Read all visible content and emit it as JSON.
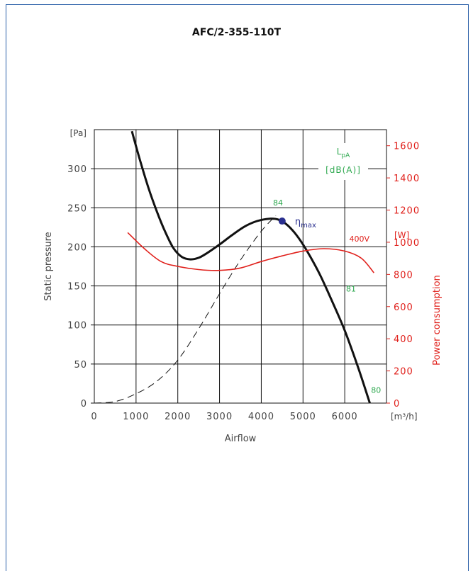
{
  "title": "AFC/2-355-110T",
  "chart_data": {
    "type": "line",
    "title": "AFC/2-355-110T",
    "xlabel": "Airflow",
    "ylabel_left": "Static pressure",
    "ylabel_right": "Power consumption",
    "x_unit": "[m³/h]",
    "y_left_unit": "[Pa]",
    "y_right_unit": "[W]",
    "xlim": [
      0,
      7000
    ],
    "ylim_left": [
      0,
      350
    ],
    "ylim_right": [
      0,
      1700
    ],
    "x_ticks": [
      0,
      1000,
      2000,
      3000,
      4000,
      5000,
      6000
    ],
    "y_left_ticks": [
      0,
      50,
      100,
      150,
      200,
      250,
      300
    ],
    "y_right_ticks": [
      0,
      200,
      400,
      600,
      800,
      1000,
      1200,
      1400,
      1600
    ],
    "grid": true,
    "legend_box": {
      "line1": "L",
      "line1_sub": "pA",
      "line2": "[dB(A)]"
    },
    "series": [
      {
        "name": "",
        "axis": "left",
        "color": "#111111",
        "style": "solid",
        "x": [
          900,
          1100,
          1300,
          1500,
          1700,
          1900,
          2100,
          2300,
          2500,
          2700,
          3000,
          3300,
          3600,
          3900,
          4200,
          4400,
          4600,
          4800,
          5000,
          5200,
          5400,
          5600,
          5800,
          6000,
          6200,
          6400,
          6600
        ],
        "y": [
          348,
          310,
          275,
          245,
          219,
          198,
          187,
          184,
          186,
          192,
          203,
          215,
          226,
          233,
          236,
          235,
          229,
          218,
          203,
          185,
          165,
          142,
          118,
          93,
          64,
          33,
          0
        ]
      },
      {
        "name": "",
        "axis": "left",
        "color": "#111111",
        "style": "dashed",
        "x": [
          0,
          500,
          1000,
          1500,
          2000,
          2500,
          3000,
          3500,
          4000,
          4350
        ],
        "y": [
          0,
          2,
          12,
          28,
          55,
          95,
          140,
          183,
          220,
          240
        ]
      },
      {
        "name": "400V",
        "axis": "right",
        "color": "#e0201b",
        "style": "solid",
        "x": [
          800,
          1200,
          1600,
          2000,
          2500,
          3000,
          3500,
          4000,
          4500,
          5000,
          5500,
          6000,
          6400,
          6700
        ],
        "y": [
          1060,
          960,
          880,
          850,
          830,
          825,
          840,
          880,
          915,
          945,
          960,
          945,
          900,
          810
        ]
      }
    ],
    "points": [
      {
        "label": "η",
        "label_sub": "max",
        "x": 4500,
        "y": 233,
        "color": "#2a2f8f"
      }
    ],
    "annotations": [
      {
        "text": "84",
        "x": 4400,
        "y": 253,
        "color": "#2ea84f"
      },
      {
        "text": "81",
        "x": 6150,
        "y": 143,
        "color": "#2ea84f"
      },
      {
        "text": "80",
        "x": 6750,
        "y": 13,
        "color": "#2ea84f"
      },
      {
        "text": "400V",
        "x": 6350,
        "y": 1005,
        "color": "#e0201b",
        "axis": "right"
      }
    ]
  }
}
